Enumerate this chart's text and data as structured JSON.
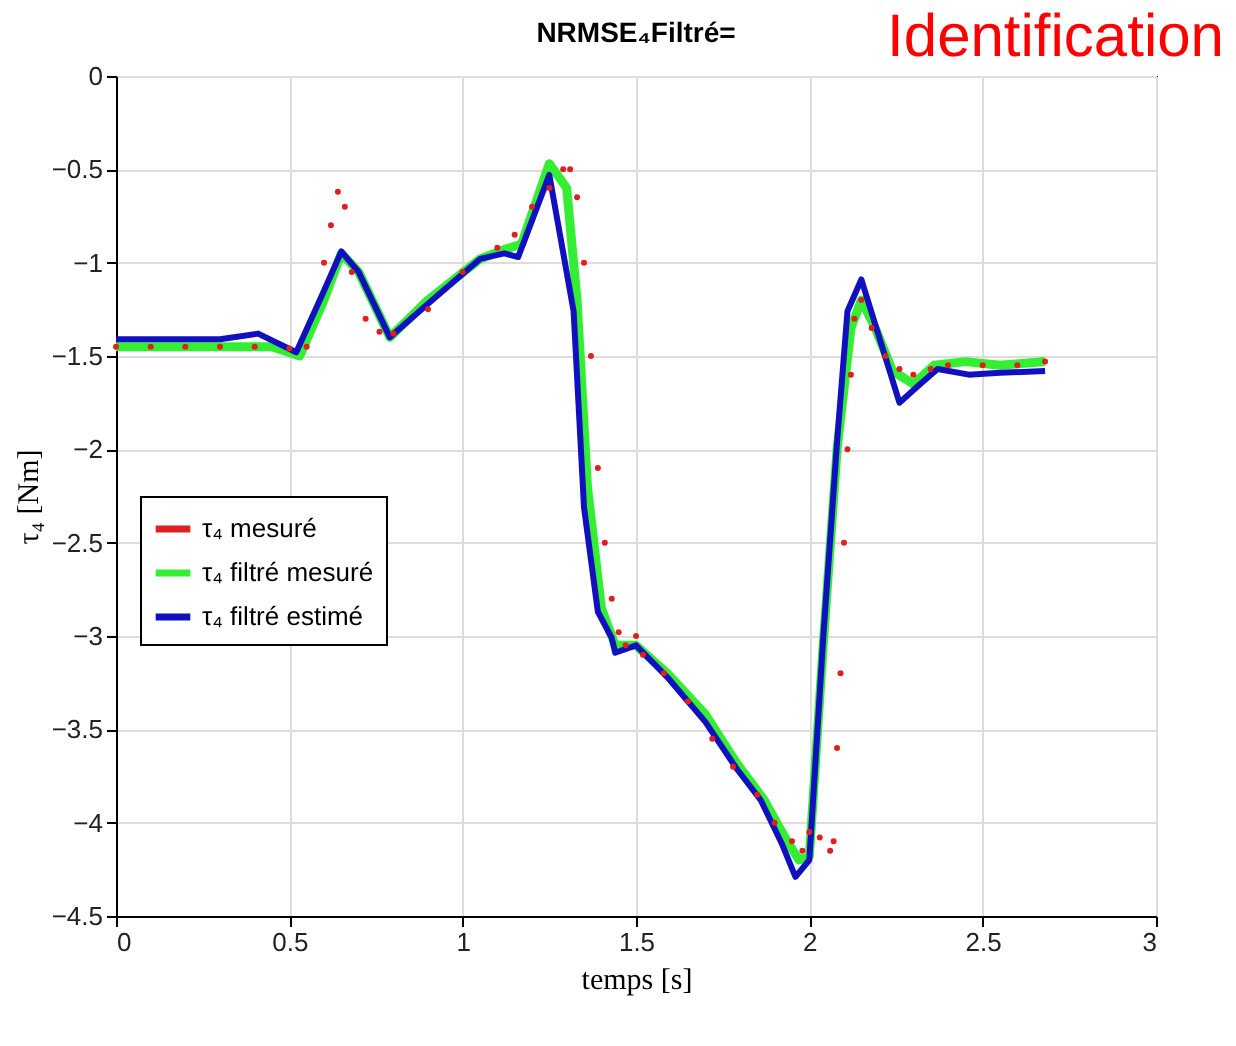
{
  "chart_data": {
    "type": "line",
    "title": "NRMSE₄Filtré=",
    "annotations": [
      "Identification"
    ],
    "xlabel": "temps [s]",
    "ylabel": "τ₄ [Nm]",
    "xlim": [
      0,
      3
    ],
    "xticks": [
      0,
      0.5,
      1,
      1.5,
      2,
      2.5,
      3
    ],
    "ylim": [
      -4.5,
      0
    ],
    "yticks": [
      -4.5,
      -4,
      -3.5,
      -3,
      -2.5,
      -2,
      -1.5,
      -1,
      -0.5,
      0
    ],
    "grid": true,
    "legend": "left",
    "series": [
      {
        "name": "τ₄ mesuré",
        "type": "scatter",
        "color": "#e02020",
        "x": [
          0,
          0.1,
          0.2,
          0.3,
          0.4,
          0.5,
          0.55,
          0.6,
          0.62,
          0.64,
          0.66,
          0.68,
          0.72,
          0.76,
          0.8,
          0.9,
          1.0,
          1.1,
          1.15,
          1.2,
          1.25,
          1.29,
          1.31,
          1.33,
          1.35,
          1.37,
          1.39,
          1.41,
          1.43,
          1.45,
          1.47,
          1.5,
          1.52,
          1.58,
          1.65,
          1.72,
          1.78,
          1.85,
          1.9,
          1.95,
          1.98,
          2.0,
          2.03,
          2.06,
          2.07,
          2.08,
          2.09,
          2.1,
          2.11,
          2.12,
          2.13,
          2.15,
          2.18,
          2.22,
          2.26,
          2.3,
          2.35,
          2.4,
          2.5,
          2.6,
          2.68
        ],
        "values": [
          -1.45,
          -1.45,
          -1.45,
          -1.45,
          -1.45,
          -1.46,
          -1.45,
          -1.0,
          -0.8,
          -0.62,
          -0.7,
          -1.05,
          -1.3,
          -1.37,
          -1.38,
          -1.25,
          -1.05,
          -0.92,
          -0.85,
          -0.7,
          -0.6,
          -0.5,
          -0.5,
          -0.65,
          -1.0,
          -1.5,
          -2.1,
          -2.5,
          -2.8,
          -2.98,
          -3.05,
          -3.0,
          -3.1,
          -3.2,
          -3.35,
          -3.55,
          -3.7,
          -3.85,
          -4.0,
          -4.1,
          -4.15,
          -4.05,
          -4.08,
          -4.15,
          -4.1,
          -3.6,
          -3.2,
          -2.5,
          -2.0,
          -1.6,
          -1.3,
          -1.2,
          -1.35,
          -1.5,
          -1.57,
          -1.6,
          -1.57,
          -1.55,
          -1.55,
          -1.55,
          -1.53
        ]
      },
      {
        "name": "τ₄ filtré mesuré",
        "color": "#33ee33",
        "x": [
          0,
          0.3,
          0.45,
          0.53,
          0.6,
          0.65,
          0.7,
          0.79,
          0.9,
          1.05,
          1.12,
          1.17,
          1.25,
          1.3,
          1.33,
          1.36,
          1.4,
          1.44,
          1.5,
          1.59,
          1.7,
          1.79,
          1.87,
          1.93,
          1.97,
          2.0,
          2.04,
          2.08,
          2.12,
          2.15,
          2.19,
          2.24,
          2.3,
          2.36,
          2.45,
          2.55,
          2.68
        ],
        "values": [
          -1.45,
          -1.45,
          -1.45,
          -1.5,
          -1.2,
          -0.95,
          -1.05,
          -1.4,
          -1.2,
          -0.98,
          -0.93,
          -0.9,
          -0.47,
          -0.6,
          -1.2,
          -2.2,
          -2.85,
          -3.05,
          -3.05,
          -3.2,
          -3.42,
          -3.68,
          -3.88,
          -4.08,
          -4.2,
          -4.18,
          -3.05,
          -2.0,
          -1.35,
          -1.2,
          -1.35,
          -1.58,
          -1.65,
          -1.55,
          -1.53,
          -1.55,
          -1.53
        ]
      },
      {
        "name": "τ₄ filtré estimé",
        "color": "#1010c0",
        "x": [
          0,
          0.3,
          0.41,
          0.52,
          0.6,
          0.65,
          0.7,
          0.79,
          0.9,
          1.05,
          1.12,
          1.16,
          1.25,
          1.32,
          1.35,
          1.39,
          1.43,
          1.44,
          1.5,
          1.59,
          1.7,
          1.79,
          1.86,
          1.92,
          1.96,
          2.0,
          2.04,
          2.08,
          2.11,
          2.15,
          2.19,
          2.26,
          2.32,
          2.37,
          2.46,
          2.55,
          2.68
        ],
        "values": [
          -1.41,
          -1.41,
          -1.38,
          -1.48,
          -1.15,
          -0.94,
          -1.05,
          -1.4,
          -1.22,
          -0.98,
          -0.95,
          -0.97,
          -0.53,
          -1.26,
          -2.31,
          -2.87,
          -3.01,
          -3.09,
          -3.05,
          -3.22,
          -3.46,
          -3.71,
          -3.88,
          -4.11,
          -4.29,
          -4.2,
          -3.01,
          -1.96,
          -1.26,
          -1.09,
          -1.33,
          -1.75,
          -1.65,
          -1.57,
          -1.6,
          -1.59,
          -1.58
        ]
      }
    ]
  }
}
